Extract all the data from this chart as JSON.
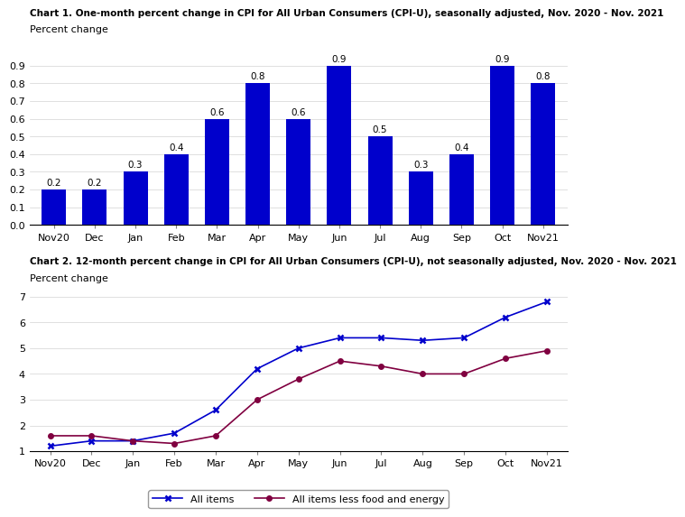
{
  "chart1": {
    "title": "Chart 1. One-month percent change in CPI for All Urban Consumers (CPI-U), seasonally adjusted, Nov. 2020 - Nov. 2021",
    "ylabel": "Percent change",
    "categories": [
      "Nov20",
      "Dec",
      "Jan",
      "Feb",
      "Mar",
      "Apr",
      "May",
      "Jun",
      "Jul",
      "Aug",
      "Sep",
      "Oct",
      "Nov21"
    ],
    "values": [
      0.2,
      0.2,
      0.3,
      0.4,
      0.6,
      0.8,
      0.6,
      0.9,
      0.5,
      0.3,
      0.4,
      0.9,
      0.8
    ],
    "bar_color": "#0000CC",
    "ylim": [
      0.0,
      1.0
    ],
    "yticks": [
      0.0,
      0.1,
      0.2,
      0.3,
      0.4,
      0.5,
      0.6,
      0.7,
      0.8,
      0.9
    ]
  },
  "chart2": {
    "title": "Chart 2. 12-month percent change in CPI for All Urban Consumers (CPI-U), not seasonally adjusted, Nov. 2020 - Nov. 2021",
    "ylabel": "Percent change",
    "categories": [
      "Nov20",
      "Dec",
      "Jan",
      "Feb",
      "Mar",
      "Apr",
      "May",
      "Jun",
      "Jul",
      "Aug",
      "Sep",
      "Oct",
      "Nov21"
    ],
    "all_items": [
      1.2,
      1.4,
      1.4,
      1.7,
      2.6,
      4.2,
      5.0,
      5.4,
      5.4,
      5.3,
      5.4,
      6.2,
      6.8
    ],
    "core_items": [
      1.6,
      1.6,
      1.4,
      1.3,
      1.6,
      3.0,
      3.8,
      4.5,
      4.3,
      4.0,
      4.0,
      4.6,
      4.9
    ],
    "all_items_color": "#0000CC",
    "core_items_color": "#800040",
    "ylim": [
      1,
      7
    ],
    "yticks": [
      1,
      2,
      3,
      4,
      5,
      6,
      7
    ],
    "legend_all": "All items",
    "legend_core": "All items less food and energy"
  }
}
